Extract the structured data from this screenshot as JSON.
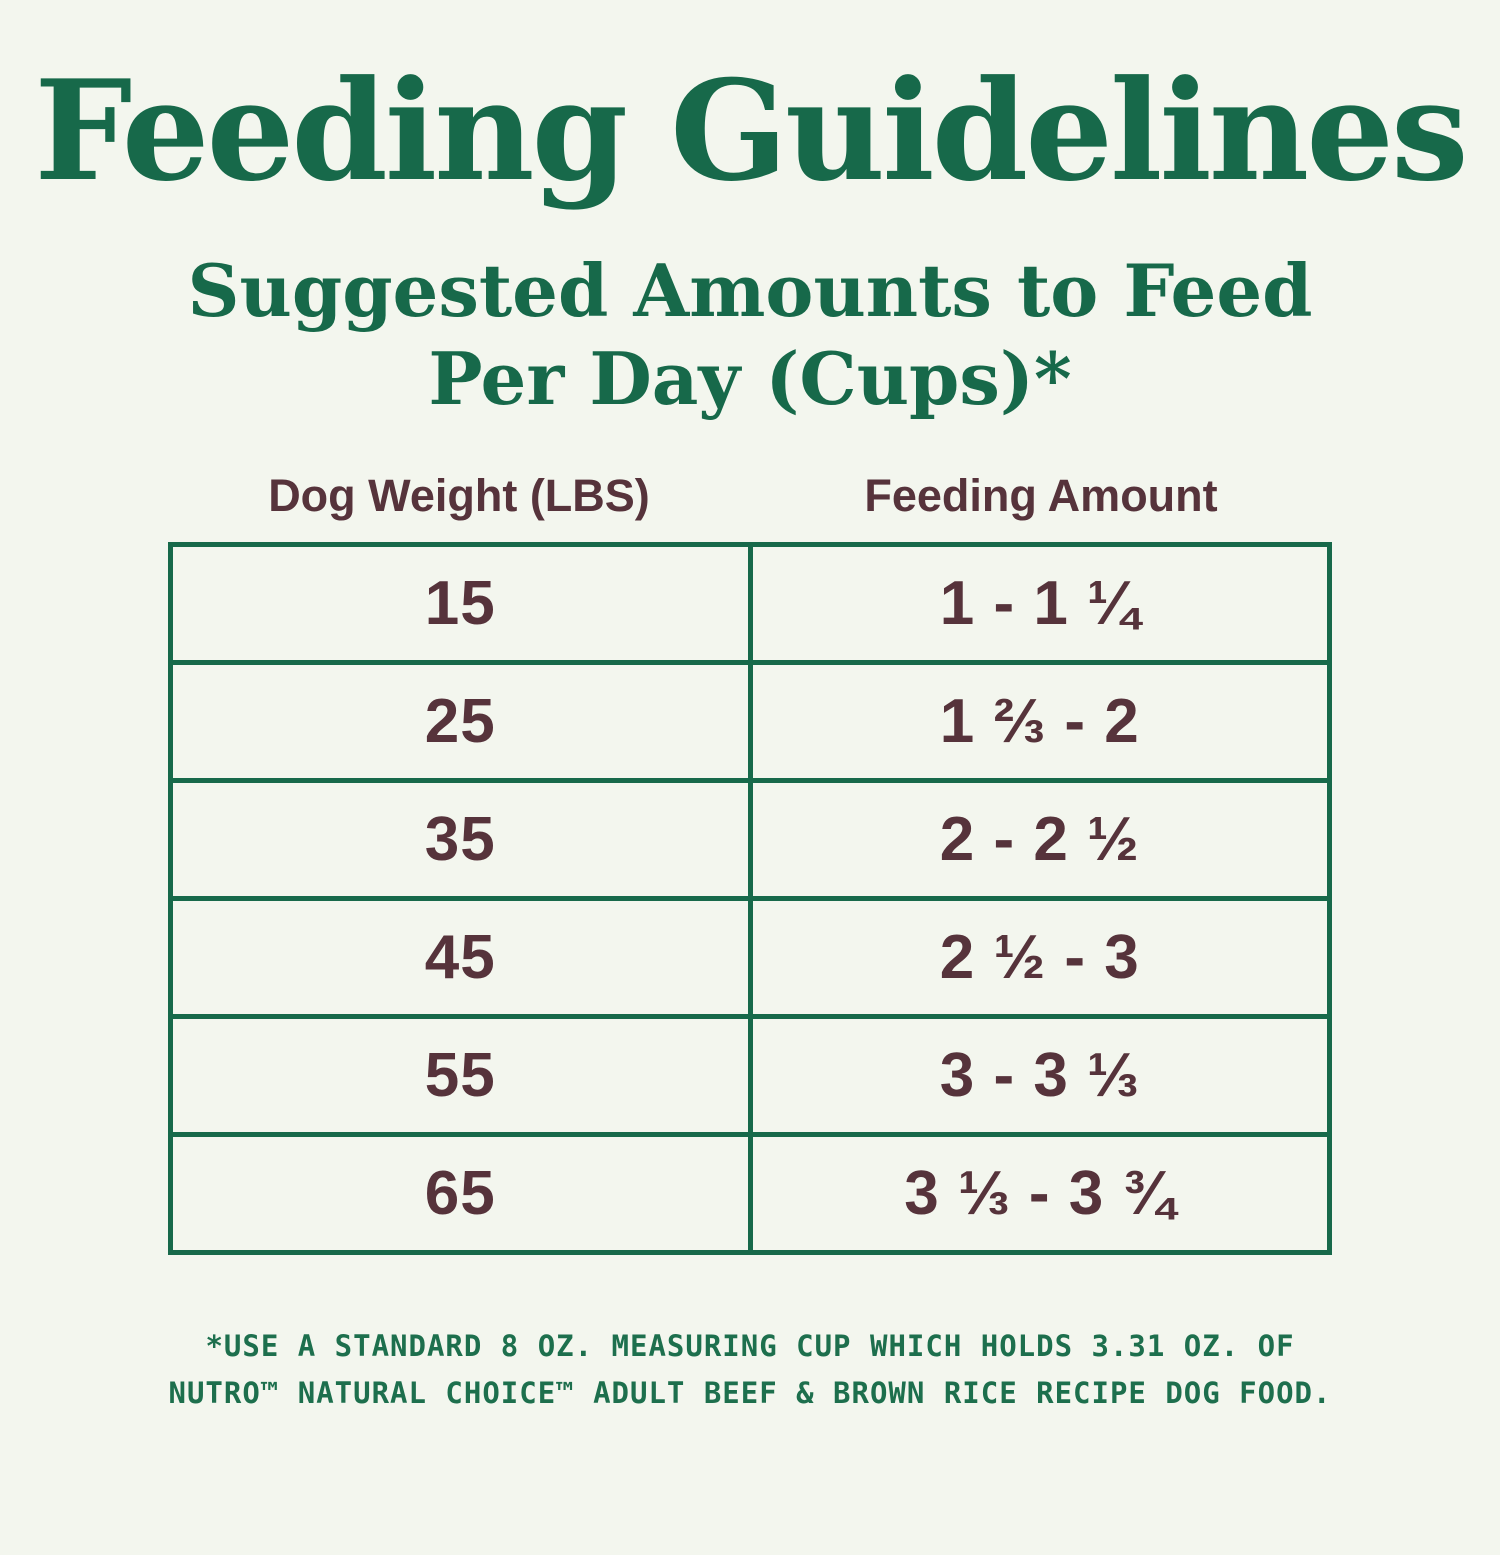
{
  "page": {
    "colors": {
      "background": "#f3f6ee",
      "green": "#17694a",
      "maroon": "#56333b"
    }
  },
  "header": {
    "title": "Feeding Guidelines",
    "subtitle_line1": "Suggested Amounts to Feed",
    "subtitle_line2": "Per Day (Cups)*"
  },
  "table": {
    "col_headers": [
      "Dog Weight (LBS)",
      "Feeding Amount"
    ],
    "rows": [
      {
        "weight": "15",
        "amount": "1 - 1 ¼"
      },
      {
        "weight": "25",
        "amount": "1 ⅔ - 2"
      },
      {
        "weight": "35",
        "amount": "2 - 2 ½"
      },
      {
        "weight": "45",
        "amount": "2 ½ - 3"
      },
      {
        "weight": "55",
        "amount": "3 - 3 ⅓"
      },
      {
        "weight": "65",
        "amount": "3 ⅓ - 3 ¾"
      }
    ]
  },
  "footnote": {
    "line1": "*USE A STANDARD 8 OZ. MEASURING CUP WHICH HOLDS 3.31 OZ. OF",
    "line2": "NUTRO™ NATURAL CHOICE™ ADULT BEEF & BROWN RICE RECIPE DOG FOOD."
  },
  "chart_data": {
    "type": "table",
    "title": "Feeding Guidelines",
    "subtitle": "Suggested Amounts to Feed Per Day (Cups)*",
    "columns": [
      "Dog Weight (LBS)",
      "Feeding Amount"
    ],
    "rows": [
      [
        "15",
        "1 - 1 ¼"
      ],
      [
        "25",
        "1 ⅔ - 2"
      ],
      [
        "35",
        "2 - 2 ½"
      ],
      [
        "45",
        "2 ½ - 3"
      ],
      [
        "55",
        "3 - 3 ⅓"
      ],
      [
        "65",
        "3 ⅓ - 3 ¾"
      ]
    ],
    "units": "cups per day",
    "footnote": "*USE A STANDARD 8 OZ. MEASURING CUP WHICH HOLDS 3.31 OZ. OF NUTRO™ NATURAL CHOICE™ ADULT BEEF & BROWN RICE RECIPE DOG FOOD."
  }
}
